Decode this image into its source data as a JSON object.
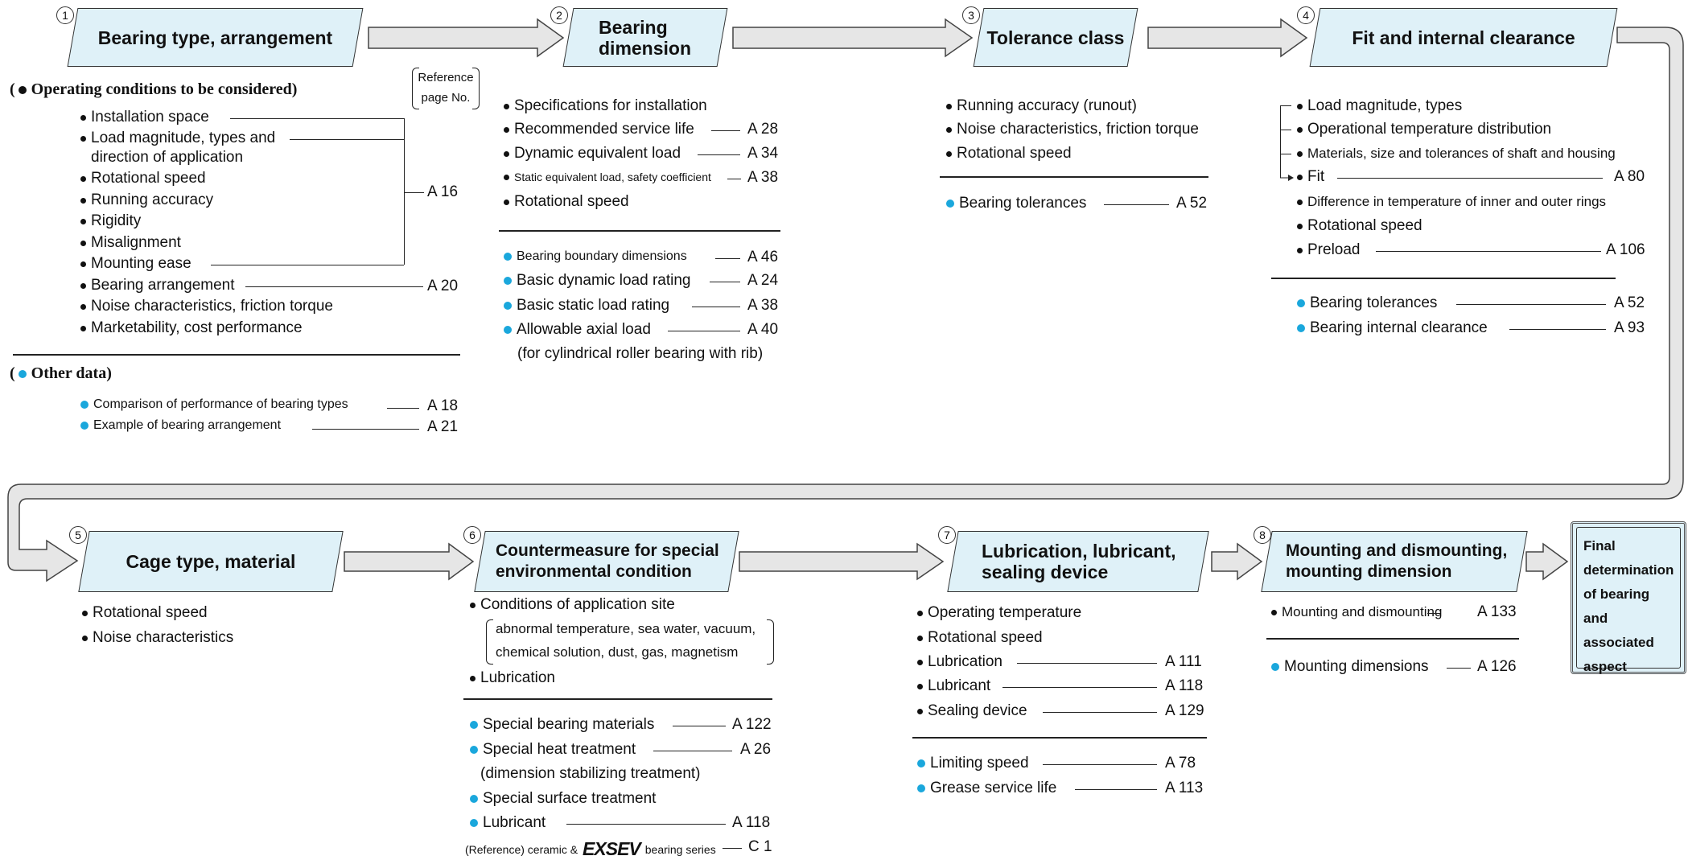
{
  "steps": [
    {
      "num": "1",
      "label": "Bearing type, arrangement"
    },
    {
      "num": "2",
      "label": "Bearing\ndimension"
    },
    {
      "num": "3",
      "label": "Tolerance class"
    },
    {
      "num": "4",
      "label": "Fit and internal clearance"
    },
    {
      "num": "5",
      "label": "Cage type, material"
    },
    {
      "num": "6",
      "label": "Countermeasure for special\nenvironmental condition"
    },
    {
      "num": "7",
      "label": "Lubrication, lubricant,\nsealing device"
    },
    {
      "num": "8",
      "label": "Mounting and dismounting,\nmounting dimension"
    }
  ],
  "final_box": "Final\ndetermination\nof bearing and\nassociated\naspect",
  "legend": {
    "operating_header": "Operating conditions to be considered",
    "other_header": "Other data",
    "reference_page": "Reference\npage No."
  },
  "col1": {
    "operating": [
      {
        "text": "Installation space"
      },
      {
        "text": "Load magnitude, types and"
      },
      {
        "text": "direction of application"
      },
      {
        "text": "Rotational speed"
      },
      {
        "text": "Running accuracy"
      },
      {
        "text": "Rigidity"
      },
      {
        "text": "Misalignment"
      },
      {
        "text": "Mounting ease"
      },
      {
        "text": "Bearing arrangement",
        "ref": "A 20"
      },
      {
        "text": "Noise characteristics, friction torque"
      },
      {
        "text": "Marketability, cost performance"
      }
    ],
    "group_ref": "A 16",
    "other": [
      {
        "text": "Comparison of performance of bearing types",
        "ref": "A 18"
      },
      {
        "text": "Example of bearing arrangement",
        "ref": "A 21"
      }
    ]
  },
  "col2": {
    "conditions": [
      {
        "text": "Specifications for installation"
      },
      {
        "text": "Recommended service life",
        "ref": "A 28"
      },
      {
        "text": "Dynamic equivalent load",
        "ref": "A 34"
      },
      {
        "text": "Static equivalent load, safety coefficient",
        "ref": "A 38"
      },
      {
        "text": "Rotational speed"
      }
    ],
    "data": [
      {
        "text": "Bearing boundary dimensions",
        "ref": "A 46"
      },
      {
        "text": "Basic dynamic load rating",
        "ref": "A 24"
      },
      {
        "text": "Basic static load rating",
        "ref": "A 38"
      },
      {
        "text": "Allowable axial load",
        "ref": "A 40"
      },
      {
        "text": "(for cylindrical roller bearing with rib)"
      }
    ]
  },
  "col3": {
    "conditions": [
      {
        "text": "Running accuracy (runout)"
      },
      {
        "text": "Noise characteristics, friction torque"
      },
      {
        "text": "Rotational speed"
      }
    ],
    "data": [
      {
        "text": "Bearing tolerances",
        "ref": "A 52"
      }
    ]
  },
  "col4": {
    "conditions": [
      {
        "text": "Load magnitude, types"
      },
      {
        "text": "Operational temperature distribution"
      },
      {
        "text": "Materials, size and tolerances of shaft and housing"
      },
      {
        "text": "Fit",
        "ref": "A 80"
      },
      {
        "text": "Difference in temperature of inner and outer rings"
      },
      {
        "text": "Rotational speed"
      },
      {
        "text": "Preload",
        "ref": "A 106"
      }
    ],
    "data": [
      {
        "text": "Bearing tolerances",
        "ref": "A 52"
      },
      {
        "text": "Bearing internal clearance",
        "ref": "A 93"
      }
    ]
  },
  "col5": {
    "conditions": [
      {
        "text": "Rotational speed"
      },
      {
        "text": "Noise characteristics"
      }
    ]
  },
  "col6": {
    "conditions": [
      {
        "text": "Conditions of application site"
      },
      {
        "text": "abnormal temperature, sea water, vacuum,"
      },
      {
        "text": "chemical solution, dust, gas, magnetism"
      },
      {
        "text": "Lubrication"
      }
    ],
    "data": [
      {
        "text": "Special bearing materials",
        "ref": "A 122"
      },
      {
        "text": "Special heat treatment",
        "ref": "A 26"
      },
      {
        "text": "(dimension stabilizing treatment)"
      },
      {
        "text": "Special surface treatment"
      },
      {
        "text": "Lubricant",
        "ref": "A 118"
      }
    ],
    "reference_line": {
      "prefix": "(Reference) ceramic &",
      "brand": "EXSEV",
      "suffix": "bearing series",
      "ref": "C 1"
    }
  },
  "col7": {
    "conditions": [
      {
        "text": "Operating temperature"
      },
      {
        "text": "Rotational speed"
      },
      {
        "text": "Lubrication",
        "ref": "A 111"
      },
      {
        "text": "Lubricant",
        "ref": "A 118"
      },
      {
        "text": "Sealing device",
        "ref": "A 129"
      }
    ],
    "data": [
      {
        "text": "Limiting speed",
        "ref": "A 78"
      },
      {
        "text": "Grease service life",
        "ref": "A 113"
      }
    ]
  },
  "col8": {
    "conditions": [
      {
        "text": "Mounting and dismounting",
        "ref": "A 133"
      }
    ],
    "data": [
      {
        "text": "Mounting dimensions",
        "ref": "A 126"
      }
    ]
  },
  "colors": {
    "box_fill": "#dff1f8",
    "bullet_blue": "#1aa7dc",
    "arrow_fill": "#e6e6e6"
  }
}
